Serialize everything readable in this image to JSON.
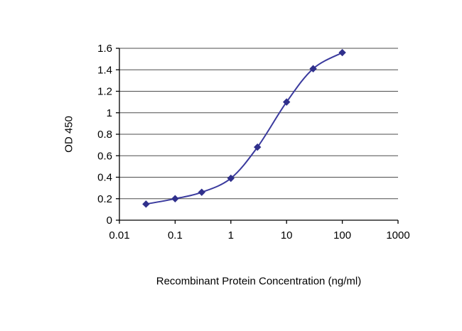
{
  "chart_data": {
    "type": "line",
    "x": [
      0.03,
      0.1,
      0.3,
      1,
      3,
      10,
      30,
      100
    ],
    "y": [
      0.15,
      0.2,
      0.26,
      0.39,
      0.68,
      1.1,
      1.41,
      1.56
    ],
    "title": "",
    "xlabel": "Recombinant Protein Concentration (ng/ml)",
    "ylabel": "OD 450",
    "x_scale": "log",
    "xlim": [
      0.01,
      1000
    ],
    "ylim": [
      0,
      1.6
    ],
    "x_ticks": [
      0.01,
      0.1,
      1,
      10,
      100,
      1000
    ],
    "x_tick_labels": [
      "0.01",
      "0.1",
      "1",
      "10",
      "100",
      "1000"
    ],
    "y_ticks": [
      0,
      0.2,
      0.4,
      0.6,
      0.8,
      1,
      1.2,
      1.4,
      1.6
    ],
    "y_tick_labels": [
      "0",
      "0.2",
      "0.4",
      "0.6",
      "0.8",
      "1",
      "1.2",
      "1.4",
      "1.6"
    ],
    "grid": "horizontal",
    "legend": "none",
    "line_color": "#3a3a9e",
    "marker": "diamond",
    "marker_color": "#30308c",
    "gridline_color": "#4d4d4d",
    "axis_color": "#000000",
    "background_color": "#ffffff"
  }
}
